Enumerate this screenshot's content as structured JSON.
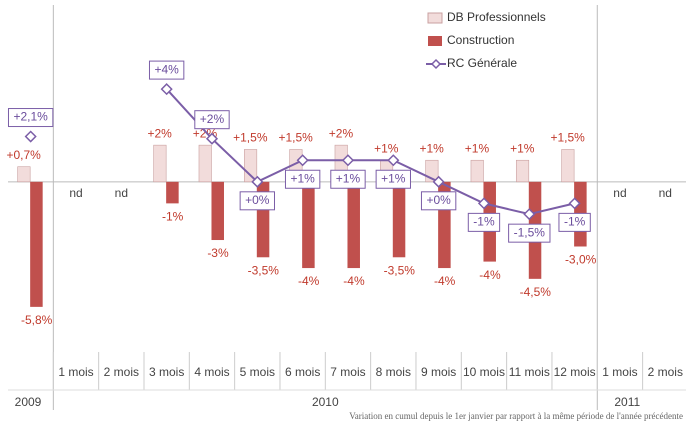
{
  "chart_data": {
    "type": "bar_line",
    "categories": [
      null,
      "1 mois",
      "2 mois",
      "3 mois",
      "4 mois",
      "5 mois",
      "6 mois",
      "7 mois",
      "8 mois",
      "9 mois",
      "10 mois",
      "11 mois",
      "12 mois",
      "1 mois",
      "2 mois"
    ],
    "x_groups": [
      {
        "label": "2009",
        "size": 1
      },
      {
        "label": "2010",
        "size": 12
      },
      {
        "label": "2011",
        "size": 2
      }
    ],
    "missing_label": "nd",
    "series": [
      {
        "name": "DB Professionnels",
        "type": "bar",
        "color": "#f2dcdb",
        "values": [
          0.7,
          null,
          null,
          1.7,
          1.7,
          1.5,
          1.5,
          1.7,
          1,
          1,
          1,
          1,
          1.5,
          null,
          null
        ],
        "value_labels": [
          "+0,7%",
          null,
          null,
          "+2%",
          "+2%",
          "+1,5%",
          "+1,5%",
          "+2%",
          "+1%",
          "+1%",
          "+1%",
          "+1%",
          "+1,5%",
          null,
          null
        ]
      },
      {
        "name": "Construction",
        "type": "bar",
        "color": "#c0504d",
        "values": [
          -5.8,
          null,
          null,
          -1,
          -2.7,
          -3.5,
          -4,
          -4,
          -3.5,
          -4,
          -3.7,
          -4.5,
          -3.0,
          null,
          null
        ],
        "value_labels": [
          "-5,8%",
          null,
          null,
          "-1%",
          "-3%",
          "-3,5%",
          "-4%",
          "-4%",
          "-3,5%",
          "-4%",
          "-4%",
          "-4,5%",
          "-3,0%",
          null,
          null
        ]
      },
      {
        "name": "RC Générale",
        "type": "line",
        "color": "#7b5ea7",
        "values": [
          2.1,
          null,
          null,
          4.3,
          2,
          0,
          1,
          1,
          1,
          0,
          -1,
          -1.5,
          -1,
          null,
          null
        ],
        "value_labels": [
          "+2,1%",
          null,
          null,
          "+4%",
          "+2%",
          "+0%",
          "+1%",
          "+1%",
          "+1%",
          "+0%",
          "-1%",
          "-1,5%",
          "-1%",
          null,
          null
        ]
      }
    ],
    "ylim": [
      -7.8,
      8.2
    ],
    "footnote": "Variation en cumul depuis le 1er janvier par rapport à la même période de l'année précédente"
  }
}
